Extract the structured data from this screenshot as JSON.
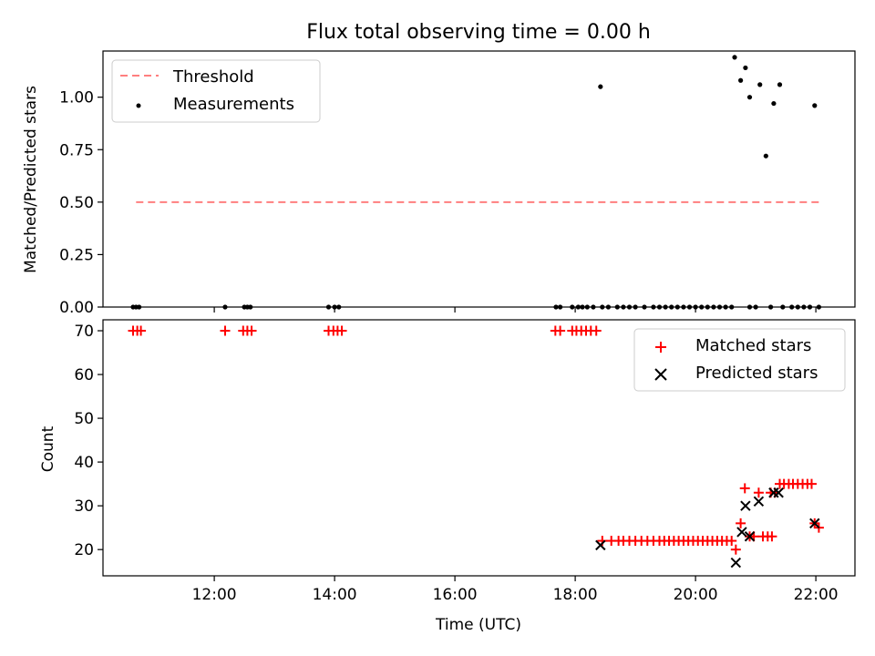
{
  "title": "Flux total observing time = 0.00 h",
  "colors": {
    "threshold": "#ff7f7f",
    "measurements": "#000000",
    "matched": "#ff0000",
    "predicted": "#000000"
  },
  "chart_data": [
    {
      "type": "scatter",
      "ylabel": "Matched/Predicted stars",
      "ylim": [
        0,
        1.22
      ],
      "yticks": [
        0.0,
        0.25,
        0.5,
        0.75,
        1.0
      ],
      "ytick_labels": [
        "0.00",
        "0.25",
        "0.50",
        "0.75",
        "1.00"
      ],
      "xlim": [
        10.15,
        22.65
      ],
      "xticks": [
        12,
        14,
        16,
        18,
        20,
        22
      ],
      "grid": false,
      "legend_position": "top-left",
      "legend": [
        "Threshold",
        "Measurements"
      ],
      "threshold": {
        "name": "Threshold",
        "x": [
          10.7,
          22.1
        ],
        "y": 0.5,
        "style": "dashed"
      },
      "series": [
        {
          "name": "Measurements",
          "marker": "dot",
          "points": [
            [
              10.65,
              0
            ],
            [
              10.7,
              0
            ],
            [
              10.75,
              0
            ],
            [
              12.18,
              0
            ],
            [
              12.5,
              0
            ],
            [
              12.55,
              0
            ],
            [
              12.6,
              0
            ],
            [
              13.9,
              0
            ],
            [
              14.0,
              0
            ],
            [
              14.07,
              0
            ],
            [
              17.68,
              0
            ],
            [
              17.75,
              0
            ],
            [
              17.95,
              0
            ],
            [
              18.05,
              0
            ],
            [
              18.12,
              0
            ],
            [
              18.2,
              0
            ],
            [
              18.3,
              0
            ],
            [
              18.45,
              0
            ],
            [
              18.55,
              0
            ],
            [
              18.7,
              0
            ],
            [
              18.8,
              0
            ],
            [
              18.9,
              0
            ],
            [
              19.0,
              0
            ],
            [
              19.15,
              0
            ],
            [
              19.3,
              0
            ],
            [
              19.4,
              0
            ],
            [
              19.5,
              0
            ],
            [
              19.6,
              0
            ],
            [
              19.7,
              0
            ],
            [
              19.8,
              0
            ],
            [
              19.9,
              0
            ],
            [
              20.0,
              0
            ],
            [
              20.1,
              0
            ],
            [
              20.2,
              0
            ],
            [
              20.3,
              0
            ],
            [
              20.4,
              0
            ],
            [
              20.5,
              0
            ],
            [
              20.6,
              0
            ],
            [
              20.9,
              0
            ],
            [
              21.0,
              0
            ],
            [
              21.25,
              0
            ],
            [
              21.45,
              0
            ],
            [
              21.6,
              0
            ],
            [
              21.7,
              0
            ],
            [
              21.8,
              0
            ],
            [
              21.9,
              0
            ],
            [
              22.05,
              0
            ],
            [
              18.42,
              1.05
            ],
            [
              20.65,
              1.19
            ],
            [
              20.75,
              1.08
            ],
            [
              20.83,
              1.14
            ],
            [
              20.9,
              1.0
            ],
            [
              21.07,
              1.06
            ],
            [
              21.17,
              0.72
            ],
            [
              21.3,
              0.97
            ],
            [
              21.4,
              1.06
            ],
            [
              21.98,
              0.96
            ]
          ]
        }
      ]
    },
    {
      "type": "scatter",
      "xlabel": "Time (UTC)",
      "ylabel": "Count",
      "ylim": [
        14,
        72.5
      ],
      "yticks": [
        20,
        30,
        40,
        50,
        60,
        70
      ],
      "ytick_labels": [
        "20",
        "30",
        "40",
        "50",
        "60",
        "70"
      ],
      "xlim": [
        10.15,
        22.65
      ],
      "xticks": [
        12,
        14,
        16,
        18,
        20,
        22
      ],
      "xtick_labels": [
        "12:00",
        "14:00",
        "16:00",
        "18:00",
        "20:00",
        "22:00"
      ],
      "grid": false,
      "legend_position": "top-right",
      "legend": [
        "Matched stars",
        "Predicted stars"
      ],
      "series": [
        {
          "name": "Matched stars",
          "marker": "plus",
          "points": [
            [
              10.65,
              70
            ],
            [
              10.72,
              70
            ],
            [
              10.78,
              70
            ],
            [
              12.18,
              70
            ],
            [
              12.48,
              70
            ],
            [
              12.55,
              70
            ],
            [
              12.62,
              70
            ],
            [
              13.9,
              70
            ],
            [
              13.98,
              70
            ],
            [
              14.05,
              70
            ],
            [
              14.12,
              70
            ],
            [
              17.67,
              70
            ],
            [
              17.75,
              70
            ],
            [
              17.95,
              70
            ],
            [
              18.02,
              70
            ],
            [
              18.1,
              70
            ],
            [
              18.18,
              70
            ],
            [
              18.26,
              70
            ],
            [
              18.35,
              70
            ],
            [
              18.45,
              22
            ],
            [
              18.6,
              22
            ],
            [
              18.72,
              22
            ],
            [
              18.8,
              22
            ],
            [
              18.9,
              22
            ],
            [
              19.0,
              22
            ],
            [
              19.1,
              22
            ],
            [
              19.2,
              22
            ],
            [
              19.3,
              22
            ],
            [
              19.4,
              22
            ],
            [
              19.48,
              22
            ],
            [
              19.56,
              22
            ],
            [
              19.64,
              22
            ],
            [
              19.72,
              22
            ],
            [
              19.8,
              22
            ],
            [
              19.88,
              22
            ],
            [
              19.96,
              22
            ],
            [
              20.04,
              22
            ],
            [
              20.12,
              22
            ],
            [
              20.2,
              22
            ],
            [
              20.28,
              22
            ],
            [
              20.36,
              22
            ],
            [
              20.44,
              22
            ],
            [
              20.52,
              22
            ],
            [
              20.6,
              22
            ],
            [
              20.67,
              20
            ],
            [
              20.75,
              26
            ],
            [
              20.82,
              34
            ],
            [
              20.9,
              23
            ],
            [
              20.97,
              23
            ],
            [
              21.05,
              33
            ],
            [
              21.12,
              23
            ],
            [
              21.2,
              23
            ],
            [
              21.27,
              23
            ],
            [
              21.25,
              33
            ],
            [
              21.32,
              33
            ],
            [
              21.4,
              35
            ],
            [
              21.47,
              35
            ],
            [
              21.55,
              35
            ],
            [
              21.62,
              35
            ],
            [
              21.7,
              35
            ],
            [
              21.78,
              35
            ],
            [
              21.86,
              35
            ],
            [
              21.93,
              35
            ],
            [
              21.98,
              26
            ],
            [
              22.05,
              25
            ]
          ]
        },
        {
          "name": "Predicted stars",
          "marker": "x",
          "points": [
            [
              18.42,
              21
            ],
            [
              20.67,
              17
            ],
            [
              20.77,
              24
            ],
            [
              20.83,
              30
            ],
            [
              20.9,
              23
            ],
            [
              21.05,
              31
            ],
            [
              21.3,
              33
            ],
            [
              21.38,
              33
            ],
            [
              21.98,
              26
            ]
          ]
        }
      ]
    }
  ]
}
